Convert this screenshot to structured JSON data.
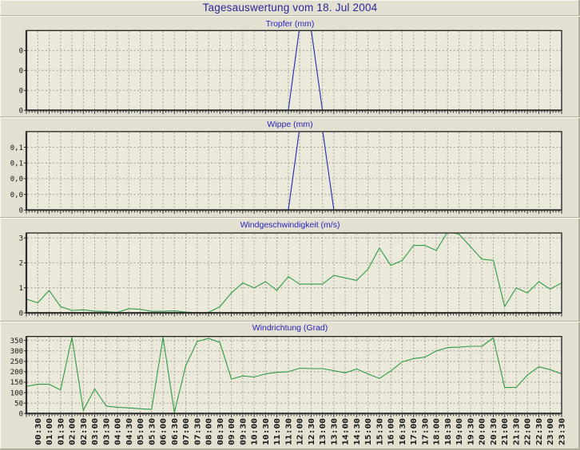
{
  "page": {
    "title": "Tagesauswertung vom 18. Jul 2004"
  },
  "colors": {
    "background": "#e3e0d1",
    "plot_bg": "#ebe9da",
    "grid": "#a09e92",
    "plot_border": "#2b2b2b",
    "blue_line": "#2727b8",
    "green_line": "#2f9c45",
    "main_title_text": "#28289a",
    "chart_title_text": "#2424c0",
    "axis_text": "#141414"
  },
  "x_axis": {
    "start_time": "00:00",
    "step_minutes": 30,
    "labels": [
      "00:30",
      "01:00",
      "01:30",
      "02:00",
      "02:30",
      "03:00",
      "03:30",
      "04:00",
      "04:30",
      "05:00",
      "05:30",
      "06:00",
      "06:30",
      "07:00",
      "07:30",
      "08:00",
      "08:30",
      "09:00",
      "09:30",
      "10:00",
      "10:30",
      "11:00",
      "11:30",
      "12:00",
      "12:30",
      "13:00",
      "13:30",
      "14:00",
      "14:30",
      "15:00",
      "15:30",
      "16:00",
      "16:30",
      "17:00",
      "17:30",
      "18:00",
      "18:30",
      "19:00",
      "19:30",
      "20:00",
      "20:30",
      "21:00",
      "21:30",
      "22:00",
      "22:30",
      "23:00",
      "23:30"
    ]
  },
  "chart_data": [
    {
      "type": "line",
      "name": "tropfer",
      "title": "Tropfer (mm)",
      "line_color_key": "blue_line",
      "y_max": 1.0,
      "y_ticks": [
        {
          "value": 0,
          "label": "0"
        },
        {
          "value": 0.25,
          "label": "0"
        },
        {
          "value": 0.5,
          "label": "0"
        },
        {
          "value": 0.75,
          "label": "0"
        }
      ],
      "note": "flat at 0 all day except one narrow spike around 12:00 that is clipped at the plot top",
      "values": [
        0,
        0,
        0,
        0,
        0,
        0,
        0,
        0,
        0,
        0,
        0,
        0,
        0,
        0,
        0,
        0,
        0,
        0,
        0,
        0,
        0,
        0,
        0,
        0,
        1.05,
        1.02,
        0,
        0,
        0,
        0,
        0,
        0,
        0,
        0,
        0,
        0,
        0,
        0,
        0,
        0,
        0,
        0,
        0,
        0,
        0,
        0,
        0,
        0
      ],
      "show_x_labels": false
    },
    {
      "type": "line",
      "name": "wippe",
      "title": "Wippe (mm)",
      "line_color_key": "blue_line",
      "y_max": 0.125,
      "y_ticks": [
        {
          "value": 0,
          "label": "0"
        },
        {
          "value": 0.025,
          "label": "0,0"
        },
        {
          "value": 0.05,
          "label": "0,0"
        },
        {
          "value": 0.075,
          "label": "0,1"
        },
        {
          "value": 0.1,
          "label": "0,1"
        }
      ],
      "note": "flat at 0 all day except one spike between ~11:30 and ~13:30 that is clipped at the plot top",
      "values": [
        0,
        0,
        0,
        0,
        0,
        0,
        0,
        0,
        0,
        0,
        0,
        0,
        0,
        0,
        0,
        0,
        0,
        0,
        0,
        0,
        0,
        0,
        0,
        0,
        0.131,
        0.134,
        0.129,
        0,
        0,
        0,
        0,
        0,
        0,
        0,
        0,
        0,
        0,
        0,
        0,
        0,
        0,
        0,
        0,
        0,
        0,
        0,
        0,
        0
      ],
      "show_x_labels": false
    },
    {
      "type": "line",
      "name": "windgeschwindigkeit",
      "title": "Windgeschwindigkeit (m/s)",
      "line_color_key": "green_line",
      "y_max": 3.2,
      "y_ticks": [
        {
          "value": 0,
          "label": "0"
        },
        {
          "value": 1,
          "label": "1"
        },
        {
          "value": 2,
          "label": "2"
        },
        {
          "value": 3,
          "label": "3"
        }
      ],
      "values": [
        0.55,
        0.4,
        0.9,
        0.25,
        0.1,
        0.12,
        0.07,
        0.05,
        0.02,
        0.17,
        0.14,
        0.06,
        0.06,
        0.08,
        0.03,
        0.01,
        0.02,
        0.25,
        0.8,
        1.2,
        1.0,
        1.25,
        0.9,
        1.45,
        1.15,
        1.15,
        1.15,
        1.5,
        1.4,
        1.3,
        1.75,
        2.6,
        1.9,
        2.1,
        2.7,
        2.7,
        2.5,
        3.25,
        3.15,
        2.65,
        2.15,
        2.1,
        0.25,
        1.0,
        0.8,
        1.25,
        0.95,
        1.2
      ],
      "show_x_labels": false
    },
    {
      "type": "line",
      "name": "windrichtung",
      "title": "Windrichtung (Grad)",
      "line_color_key": "green_line",
      "y_max": 369,
      "y_ticks": [
        {
          "value": 0,
          "label": "0"
        },
        {
          "value": 50,
          "label": "50"
        },
        {
          "value": 100,
          "label": "100"
        },
        {
          "value": 150,
          "label": "150"
        },
        {
          "value": 200,
          "label": "200"
        },
        {
          "value": 250,
          "label": "250"
        },
        {
          "value": 300,
          "label": "300"
        },
        {
          "value": 350,
          "label": "350"
        }
      ],
      "values": [
        130,
        140,
        140,
        113,
        365,
        15,
        118,
        36,
        30,
        27,
        23,
        20,
        365,
        5,
        230,
        345,
        360,
        340,
        165,
        180,
        175,
        190,
        197,
        200,
        217,
        215,
        215,
        205,
        195,
        213,
        190,
        168,
        204,
        247,
        263,
        270,
        300,
        316,
        318,
        322,
        322,
        362,
        125,
        125,
        184,
        224,
        210,
        190
      ],
      "show_x_labels": true
    }
  ]
}
